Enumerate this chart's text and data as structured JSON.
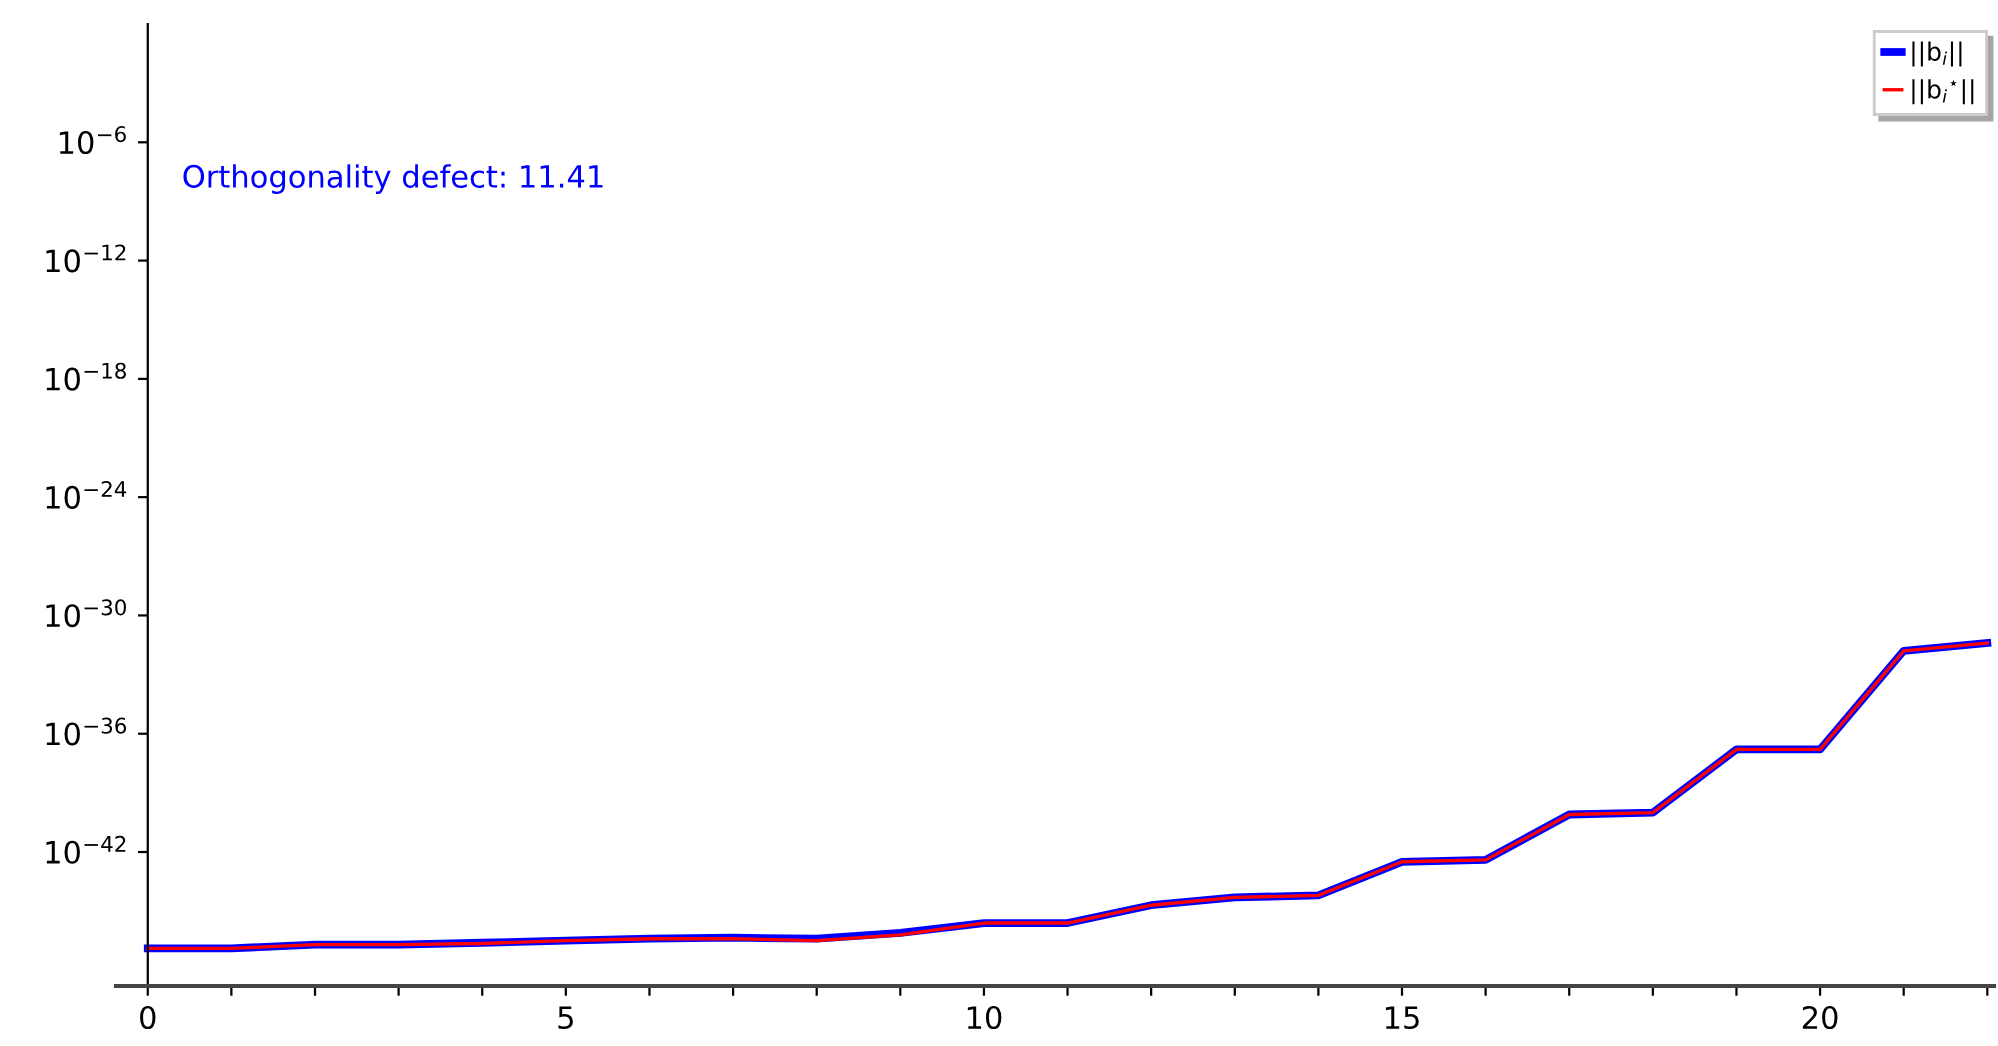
{
  "chart_data": {
    "type": "line",
    "log": "y",
    "annotations": [
      "Orthogonality defect: 11.41"
    ],
    "x": [
      0,
      1,
      2,
      3,
      4,
      5,
      6,
      7,
      8,
      9,
      10,
      11,
      12,
      13,
      14,
      15,
      16,
      17,
      18,
      19,
      20,
      21,
      22
    ],
    "series": [
      {
        "name": "||b$_{i}$||",
        "color": "#0000ff",
        "values": [
          1.3e-47,
          1.3e-47,
          2e-47,
          2e-47,
          2.5e-47,
          3.2e-47,
          4e-47,
          4.5e-47,
          4e-47,
          8e-47,
          2.5e-46,
          2.5e-46,
          2e-45,
          5e-45,
          6.3e-45,
          3.2e-43,
          4e-43,
          8e-41,
          1e-40,
          1.6e-37,
          1.6e-37,
          1.6e-32,
          4e-32
        ]
      },
      {
        "name": "||b$_{i}$$^{⋆}$||",
        "color": "#ff0000",
        "values": [
          1.3e-47,
          1.3e-47,
          2e-47,
          2e-47,
          2.3e-47,
          3.2e-47,
          4e-47,
          4e-47,
          3.2e-47,
          6.3e-47,
          2.5e-46,
          2.5e-46,
          2e-45,
          5e-45,
          6.3e-45,
          3.2e-43,
          4e-43,
          8e-41,
          1e-40,
          1.6e-37,
          1.6e-37,
          1.6e-32,
          4e-32
        ]
      }
    ],
    "xlim": [
      -0.38,
      22.08
    ],
    "xticks": [
      0,
      {
        "value": 1,
        "label": null
      },
      {
        "value": 2,
        "label": null
      },
      {
        "value": 3,
        "label": null
      },
      {
        "value": 4,
        "label": null
      },
      5,
      {
        "value": 6,
        "label": null
      },
      {
        "value": 7,
        "label": null
      },
      {
        "value": 8,
        "label": null
      },
      {
        "value": 9,
        "label": null
      },
      10,
      {
        "value": 11,
        "label": null
      },
      {
        "value": 12,
        "label": null
      },
      {
        "value": 13,
        "label": null
      },
      {
        "value": 14,
        "label": null
      },
      15,
      {
        "value": 16,
        "label": null
      },
      {
        "value": 17,
        "label": null
      },
      {
        "value": 18,
        "label": null
      },
      {
        "value": 19,
        "label": null
      },
      20,
      {
        "value": 21,
        "label": null
      },
      {
        "value": 22,
        "label": null
      }
    ],
    "ylim": [
      1.6e-49,
      1
    ],
    "yticks": [
      {
        "value": 1e-42,
        "label": "10$^{−42}$"
      },
      {
        "value": 1e-36,
        "label": "10$^{−36}$"
      },
      {
        "value": 1e-30,
        "label": "10$^{−30}$"
      },
      {
        "value": 1e-24,
        "label": "10$^{−24}$"
      },
      {
        "value": 1e-18,
        "label": "10$^{−18}$"
      },
      {
        "value": 1e-12,
        "label": "10$^{−12}$"
      },
      {
        "value": 1e-06,
        "label": "10$^{−6}$"
      }
    ],
    "legend": "top right",
    "grid": false,
    "marker": "none",
    "line_style": "solid"
  }
}
